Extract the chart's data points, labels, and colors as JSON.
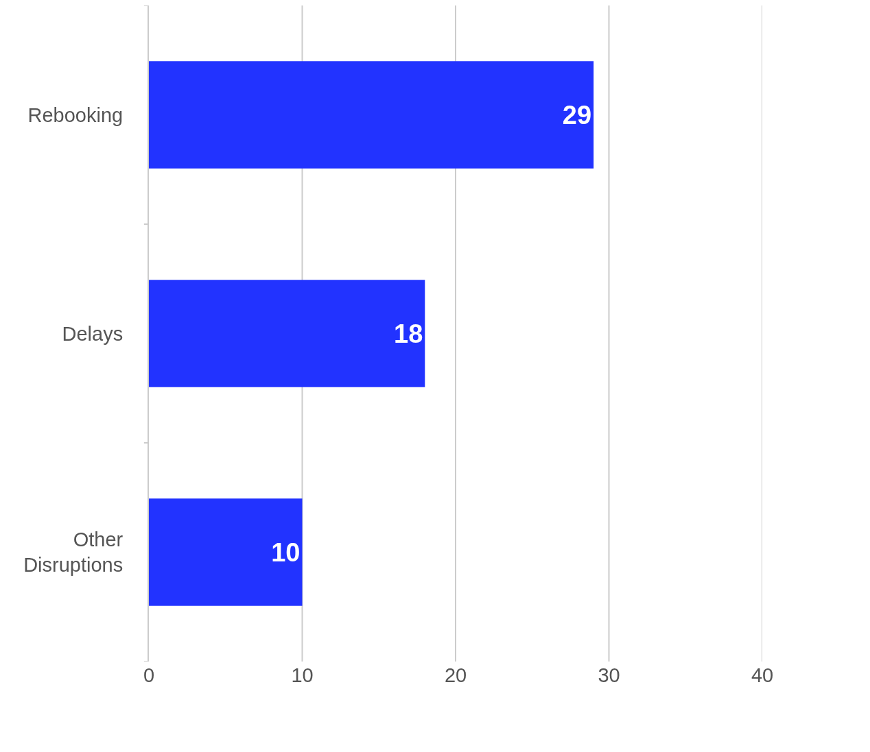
{
  "chart_data": {
    "type": "bar",
    "orientation": "horizontal",
    "categories": [
      "Rebooking",
      "Delays",
      "Other Disruptions"
    ],
    "values": [
      29,
      18,
      10
    ],
    "color": "#2233ff",
    "data_labels": true,
    "xlim": [
      0,
      40
    ],
    "xticks": [
      0,
      10,
      20,
      30,
      40
    ],
    "grid": "x"
  }
}
